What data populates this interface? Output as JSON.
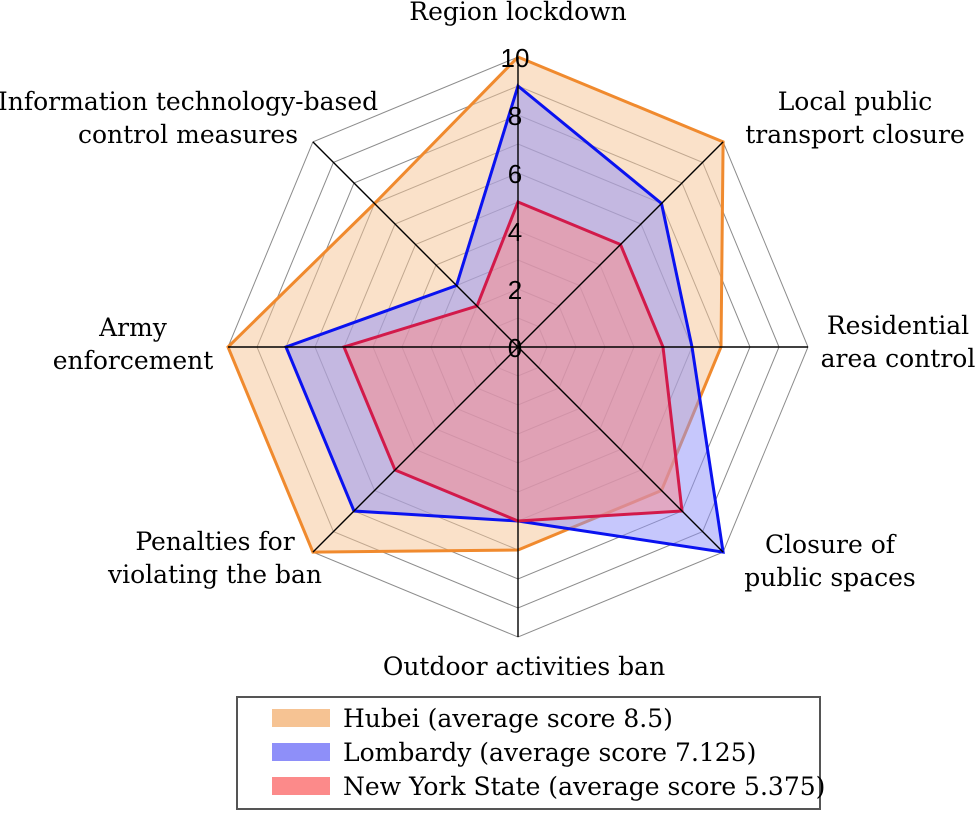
{
  "chart_data": {
    "type": "radar",
    "title": "",
    "categories": [
      "Region lockdown",
      "Local public transport closure",
      "Residential area control",
      "Closure of public spaces",
      "Outdoor activities ban",
      "Penalties for violating the ban",
      "Army enforcement",
      "Information technology-based control measures"
    ],
    "category_label_lines": [
      [
        "Region lockdown"
      ],
      [
        "Local public",
        "transport closure"
      ],
      [
        "Residential",
        "area control"
      ],
      [
        "Closure of",
        "public spaces"
      ],
      [
        "Outdoor activities ban"
      ],
      [
        "Penalties for",
        "violating the ban"
      ],
      [
        "Army",
        "enforcement"
      ],
      [
        "Information technology-based",
        "control measures"
      ]
    ],
    "rlim": [
      0,
      10
    ],
    "ticks": [
      "0",
      "2",
      "4",
      "6",
      "8",
      "10"
    ],
    "grid": true,
    "legend_position": "bottom",
    "series": [
      {
        "name": "Hubei (average score 8.5)",
        "values": [
          10,
          10,
          7,
          7,
          7,
          10,
          10,
          7
        ],
        "stroke": "#f08a2e",
        "fill": "#f6c393"
      },
      {
        "name": "Lombardy (average score 7.125)",
        "values": [
          9,
          7,
          6,
          10,
          6,
          8,
          8,
          3
        ],
        "stroke": "#0a12f0",
        "fill": "#8e8ff9"
      },
      {
        "name": "New York State (average score 5.375)",
        "values": [
          5,
          5,
          5,
          8,
          6,
          6,
          6,
          2
        ],
        "stroke": "#d21a4a",
        "fill": "#fc8a8a"
      }
    ]
  }
}
